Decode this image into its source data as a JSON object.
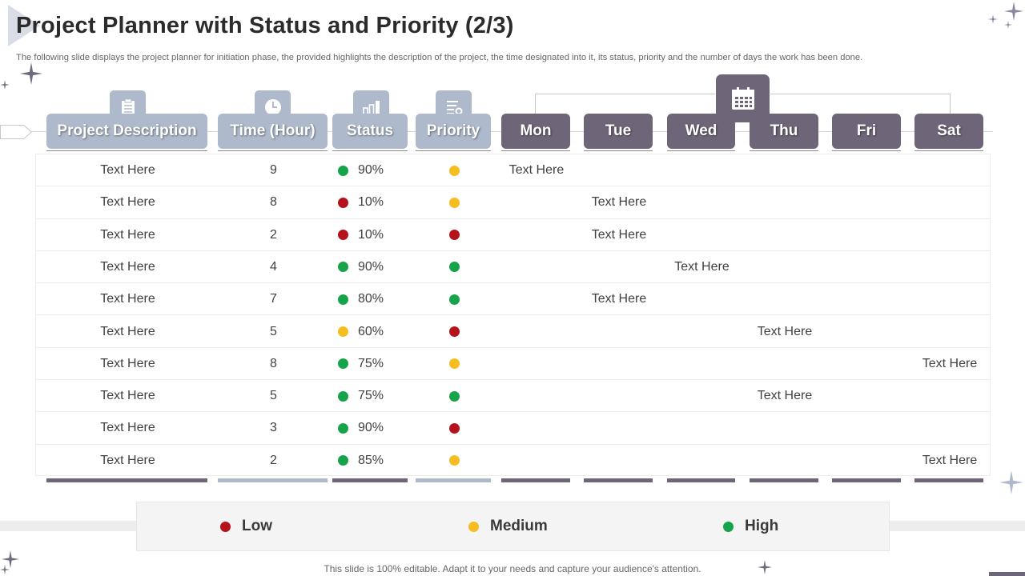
{
  "title": "Project Planner with Status and Priority (2/3)",
  "subtitle": "The following slide displays the project planner for initiation phase, the provided highlights the description of the project, the time designated into it, its status, priority and the number of days the work has been done.",
  "headers": {
    "description": "Project Description",
    "time": "Time (Hour)",
    "status": "Status",
    "priority": "Priority",
    "days": [
      "Mon",
      "Tue",
      "Wed",
      "Thu",
      "Fri",
      "Sat"
    ]
  },
  "icons": {
    "description": "clipboard-icon",
    "time": "clock-icon",
    "status": "bar-chart-icon",
    "priority": "list-settings-icon",
    "days": "calendar-icon"
  },
  "colors": {
    "low": "#b5121b",
    "medium": "#f5bd1f",
    "high": "#17a34a",
    "header_light": "#aebacb",
    "header_dark": "#6e6578"
  },
  "rows": [
    {
      "description": "Text Here",
      "time": "9",
      "status_level": "high",
      "status": "90%",
      "priority": "medium",
      "day": "Mon",
      "day_text": "Text Here"
    },
    {
      "description": "Text Here",
      "time": "8",
      "status_level": "low",
      "status": "10%",
      "priority": "medium",
      "day": "Tue",
      "day_text": "Text Here"
    },
    {
      "description": "Text Here",
      "time": "2",
      "status_level": "low",
      "status": "10%",
      "priority": "low",
      "day": "Tue",
      "day_text": "Text Here"
    },
    {
      "description": "Text Here",
      "time": "4",
      "status_level": "high",
      "status": "90%",
      "priority": "high",
      "day": "Wed",
      "day_text": "Text Here"
    },
    {
      "description": "Text Here",
      "time": "7",
      "status_level": "high",
      "status": "80%",
      "priority": "high",
      "day": "Tue",
      "day_text": "Text Here"
    },
    {
      "description": "Text Here",
      "time": "5",
      "status_level": "medium",
      "status": "60%",
      "priority": "low",
      "day": "Thu",
      "day_text": "Text Here"
    },
    {
      "description": "Text Here",
      "time": "8",
      "status_level": "high",
      "status": "75%",
      "priority": "medium",
      "day": "Sat",
      "day_text": "Text Here"
    },
    {
      "description": "Text Here",
      "time": "5",
      "status_level": "high",
      "status": "75%",
      "priority": "high",
      "day": "Thu",
      "day_text": "Text Here"
    },
    {
      "description": "Text Here",
      "time": "3",
      "status_level": "high",
      "status": "90%",
      "priority": "low",
      "day": "",
      "day_text": ""
    },
    {
      "description": "Text Here",
      "time": "2",
      "status_level": "high",
      "status": "85%",
      "priority": "medium",
      "day": "Sat",
      "day_text": "Text Here"
    }
  ],
  "legend": {
    "low": "Low",
    "medium": "Medium",
    "high": "High"
  },
  "footer": "This slide is 100% editable. Adapt it to your needs and capture your audience's attention."
}
